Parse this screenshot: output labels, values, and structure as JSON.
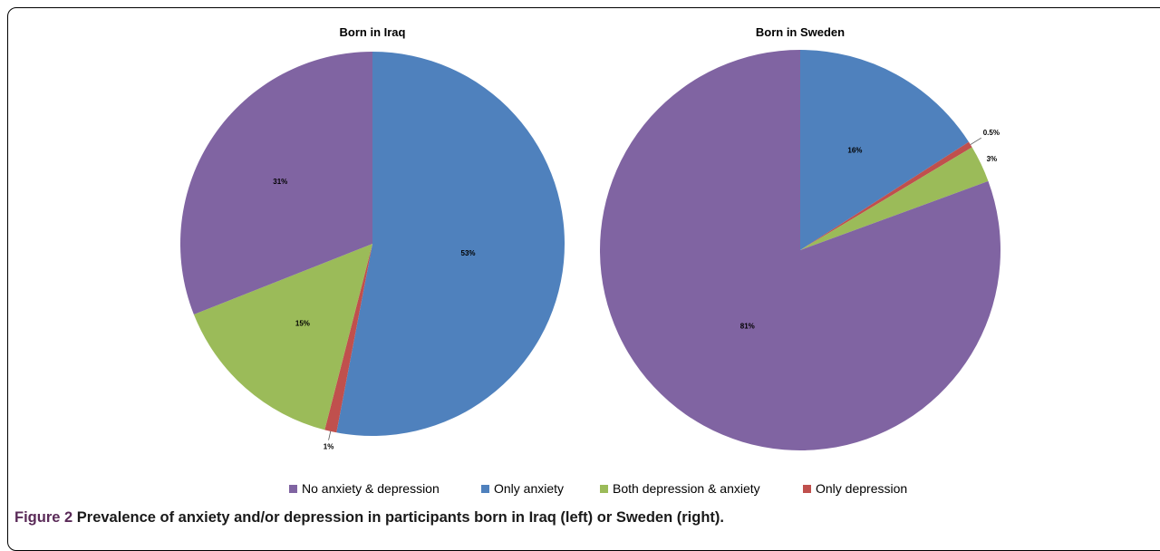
{
  "caption": {
    "label": "Figure 2",
    "text": "Prevalence of anxiety and/or depression in participants born in Iraq (left) or Sweden (right)."
  },
  "legend": [
    {
      "name": "No anxiety & depression",
      "color": "#8064a2"
    },
    {
      "name": "Only anxiety",
      "color": "#4f81bd"
    },
    {
      "name": "Both depression & anxiety",
      "color": "#9bbb59"
    },
    {
      "name": "Only depression",
      "color": "#c0504d"
    }
  ],
  "chart_data": [
    {
      "type": "pie",
      "title": "Born in Iraq",
      "slices": [
        {
          "name": "Only anxiety",
          "value": 53,
          "label": "53%",
          "color": "#4f81bd"
        },
        {
          "name": "Only depression",
          "value": 1,
          "label": "1%",
          "color": "#c0504d"
        },
        {
          "name": "Both depression & anxiety",
          "value": 15,
          "label": "15%",
          "color": "#9bbb59"
        },
        {
          "name": "No anxiety & depression",
          "value": 31,
          "label": "31%",
          "color": "#8064a2"
        }
      ]
    },
    {
      "type": "pie",
      "title": "Born in Sweden",
      "slices": [
        {
          "name": "Only anxiety",
          "value": 16,
          "label": "16%",
          "color": "#4f81bd"
        },
        {
          "name": "Only depression",
          "value": 0.5,
          "label": "0.5%",
          "color": "#c0504d"
        },
        {
          "name": "Both depression & anxiety",
          "value": 3,
          "label": "3%",
          "color": "#9bbb59"
        },
        {
          "name": "No anxiety & depression",
          "value": 81,
          "label": "81%",
          "color": "#8064a2"
        }
      ]
    }
  ]
}
